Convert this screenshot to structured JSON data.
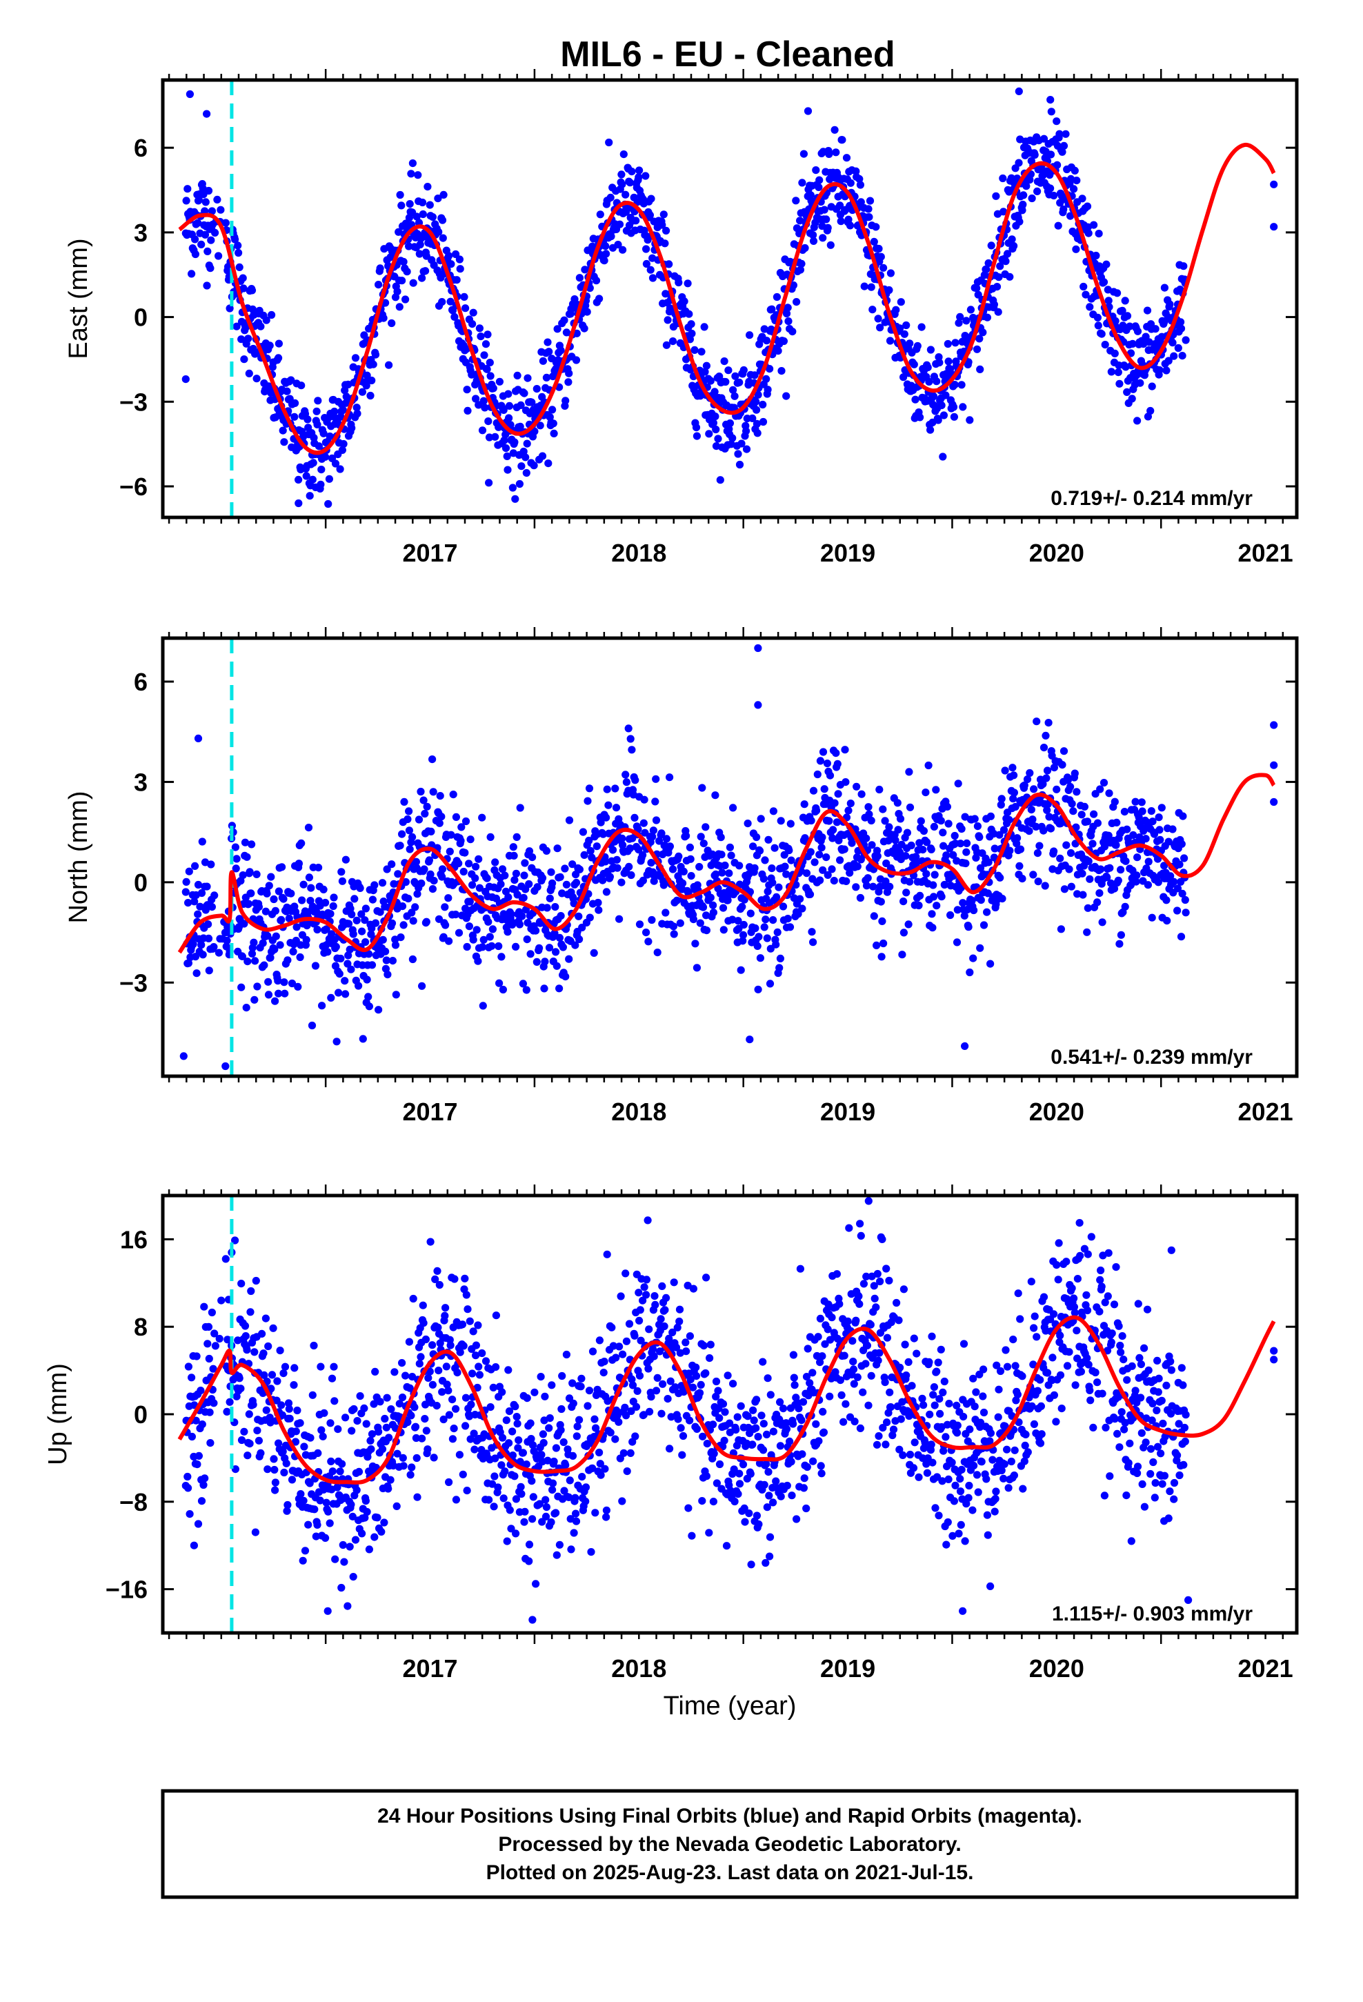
{
  "colors": {
    "final_orbit_points": "#0000ff",
    "model_curve": "#ff0000",
    "event_line": "#00e5e5",
    "frame": "#000000"
  },
  "chart_data": [
    {
      "type": "scatter",
      "title": "MIL6  - EU - Cleaned",
      "xlabel": "",
      "ylabel": "East (mm)",
      "xlim": [
        2016.22,
        2021.65
      ],
      "ylim": [
        -7.1,
        8.4
      ],
      "yticks": [
        -6,
        -3,
        0,
        3,
        6
      ],
      "yticklabels": [
        "−6",
        "−3",
        "0",
        "3",
        "6"
      ],
      "xticks": [
        2017,
        2018,
        2019,
        2020,
        2021
      ],
      "xticklabels": [
        "2017",
        "2018",
        "2019",
        "2020",
        "2021"
      ],
      "event_line_x": 2016.55,
      "rate_annotation": "0.719+/- 0.214 mm/yr",
      "rate_mm_per_yr": 0.719,
      "rate_uncertainty_mm_per_yr": 0.214,
      "model": {
        "x": [
          2016.3,
          2016.4,
          2016.5,
          2016.6,
          2016.7,
          2016.8,
          2016.9,
          2017.0,
          2017.1,
          2017.2,
          2017.3,
          2017.4,
          2017.5,
          2017.6,
          2017.7,
          2017.8,
          2017.9,
          2018.0,
          2018.1,
          2018.2,
          2018.3,
          2018.4,
          2018.5,
          2018.6,
          2018.7,
          2018.8,
          2018.9,
          2019.0,
          2019.1,
          2019.2,
          2019.3,
          2019.4,
          2019.5,
          2019.6,
          2019.7,
          2019.8,
          2019.9,
          2020.0,
          2020.1,
          2020.2,
          2020.3,
          2020.4,
          2020.5,
          2020.6,
          2020.7,
          2020.8,
          2020.9,
          2021.0,
          2021.1,
          2021.2,
          2021.3,
          2021.4,
          2021.5,
          2021.54
        ],
        "y": [
          3.1,
          3.6,
          3.2,
          0.5,
          -1.4,
          -3.3,
          -4.6,
          -4.7,
          -3.5,
          -1.2,
          1.4,
          3.0,
          3.0,
          1.2,
          -1.2,
          -3.2,
          -4.1,
          -3.8,
          -2.4,
          -0.1,
          2.4,
          3.9,
          3.8,
          2.2,
          -0.3,
          -2.4,
          -3.3,
          -3.2,
          -1.8,
          0.7,
          3.2,
          4.6,
          4.4,
          2.6,
          0.1,
          -1.9,
          -2.6,
          -2.2,
          -0.8,
          1.9,
          4.4,
          5.4,
          5.1,
          3.4,
          1.0,
          -0.9,
          -1.8,
          -1.2,
          0.6,
          3.1,
          5.3,
          6.1,
          5.6,
          5.1
        ]
      },
      "observations": {
        "period_yr": 1.0,
        "last_obs_x": 2021.54,
        "outlier_points": [
          [
            2016.35,
            7.9
          ],
          [
            2016.43,
            7.2
          ],
          [
            2016.33,
            -2.2
          ],
          [
            2020.32,
            8.0
          ],
          [
            2020.47,
            7.7
          ],
          [
            2019.31,
            7.3
          ],
          [
            2016.87,
            -6.6
          ],
          [
            2021.54,
            3.2
          ],
          [
            2021.54,
            4.7
          ]
        ]
      }
    },
    {
      "type": "scatter",
      "title": "",
      "xlabel": "",
      "ylabel": "North (mm)",
      "xlim": [
        2016.22,
        2021.65
      ],
      "ylim": [
        -5.8,
        7.3
      ],
      "yticks": [
        -3,
        0,
        3,
        6
      ],
      "yticklabels": [
        "−3",
        "0",
        "3",
        "6"
      ],
      "xticks": [
        2017,
        2018,
        2019,
        2020,
        2021
      ],
      "xticklabels": [
        "2017",
        "2018",
        "2019",
        "2020",
        "2021"
      ],
      "event_line_x": 2016.55,
      "rate_annotation": "0.541+/- 0.239 mm/yr",
      "rate_mm_per_yr": 0.541,
      "rate_uncertainty_mm_per_yr": 0.239,
      "model": {
        "x": [
          2016.3,
          2016.4,
          2016.5,
          2016.54,
          2016.55,
          2016.6,
          2016.7,
          2016.8,
          2016.9,
          2017.0,
          2017.1,
          2017.2,
          2017.3,
          2017.4,
          2017.5,
          2017.6,
          2017.7,
          2017.8,
          2017.9,
          2018.0,
          2018.1,
          2018.2,
          2018.3,
          2018.4,
          2018.5,
          2018.6,
          2018.7,
          2018.8,
          2018.9,
          2019.0,
          2019.1,
          2019.2,
          2019.3,
          2019.4,
          2019.5,
          2019.6,
          2019.7,
          2019.8,
          2019.9,
          2020.0,
          2020.1,
          2020.2,
          2020.3,
          2020.4,
          2020.5,
          2020.6,
          2020.7,
          2020.8,
          2020.9,
          2021.0,
          2021.1,
          2021.2,
          2021.3,
          2021.4,
          2021.5,
          2021.54
        ],
        "y": [
          -2.1,
          -1.2,
          -1.0,
          -1.1,
          0.3,
          -0.9,
          -1.4,
          -1.3,
          -1.1,
          -1.2,
          -1.7,
          -2.0,
          -1.0,
          0.6,
          1.0,
          0.4,
          -0.4,
          -0.8,
          -0.6,
          -0.8,
          -1.4,
          -0.8,
          0.6,
          1.5,
          1.4,
          0.5,
          -0.4,
          -0.3,
          0.0,
          -0.3,
          -0.8,
          -0.4,
          1.0,
          2.1,
          1.7,
          0.7,
          0.3,
          0.3,
          0.6,
          0.4,
          -0.3,
          0.4,
          1.8,
          2.6,
          2.3,
          1.3,
          0.7,
          0.9,
          1.1,
          0.8,
          0.2,
          0.5,
          1.9,
          3.0,
          3.2,
          2.9
        ]
      },
      "observations": {
        "period_yr": 1.0,
        "last_obs_x": 2021.54,
        "outlier_points": [
          [
            2019.07,
            7.0
          ],
          [
            2019.07,
            5.3
          ],
          [
            2018.45,
            4.6
          ],
          [
            2016.39,
            4.3
          ],
          [
            2016.52,
            -5.5
          ],
          [
            2016.32,
            -5.2
          ],
          [
            2019.03,
            -4.7
          ],
          [
            2020.06,
            -4.9
          ],
          [
            2021.54,
            2.4
          ],
          [
            2021.54,
            3.5
          ],
          [
            2021.54,
            4.7
          ]
        ]
      }
    },
    {
      "type": "scatter",
      "title": "",
      "xlabel": "Time (year)",
      "ylabel": "Up (mm)",
      "xlim": [
        2016.22,
        2021.65
      ],
      "ylim": [
        -20,
        20
      ],
      "yticks": [
        -16,
        -8,
        0,
        8,
        16
      ],
      "yticklabels": [
        "−16",
        "−8",
        "0",
        "8",
        "16"
      ],
      "xticks": [
        2017,
        2018,
        2019,
        2020,
        2021
      ],
      "xticklabels": [
        "2017",
        "2018",
        "2019",
        "2020",
        "2021"
      ],
      "event_line_x": 2016.55,
      "rate_annotation": "1.115+/- 0.903 mm/yr",
      "rate_mm_per_yr": 1.115,
      "rate_uncertainty_mm_per_yr": 0.903,
      "model": {
        "x": [
          2016.3,
          2016.4,
          2016.5,
          2016.54,
          2016.55,
          2016.6,
          2016.7,
          2016.8,
          2016.9,
          2017.0,
          2017.1,
          2017.2,
          2017.3,
          2017.4,
          2017.5,
          2017.6,
          2017.7,
          2017.8,
          2017.9,
          2018.0,
          2018.1,
          2018.2,
          2018.3,
          2018.4,
          2018.5,
          2018.6,
          2018.7,
          2018.8,
          2018.9,
          2019.0,
          2019.1,
          2019.2,
          2019.3,
          2019.4,
          2019.5,
          2019.6,
          2019.7,
          2019.8,
          2019.9,
          2020.0,
          2020.1,
          2020.2,
          2020.3,
          2020.4,
          2020.5,
          2020.6,
          2020.7,
          2020.8,
          2020.9,
          2021.0,
          2021.1,
          2021.2,
          2021.3,
          2021.4,
          2021.5,
          2021.54
        ],
        "y": [
          -2.3,
          1.0,
          4.5,
          5.8,
          3.8,
          4.5,
          2.8,
          -1.5,
          -4.6,
          -6.0,
          -6.2,
          -6.0,
          -4.0,
          1.0,
          4.7,
          5.6,
          2.5,
          -2.0,
          -4.5,
          -5.2,
          -5.2,
          -4.8,
          -2.5,
          2.0,
          5.5,
          6.5,
          3.8,
          -0.8,
          -3.5,
          -4.0,
          -4.1,
          -3.8,
          -1.0,
          3.5,
          7.0,
          7.7,
          5.0,
          1.0,
          -2.0,
          -3.0,
          -3.0,
          -2.8,
          -0.5,
          4.0,
          7.8,
          8.8,
          6.5,
          2.5,
          -0.5,
          -1.5,
          -1.9,
          -1.8,
          -0.5,
          3.0,
          7.0,
          8.5
        ]
      },
      "observations": {
        "period_yr": 1.0,
        "last_obs_x": 2021.54,
        "outlier_points": [
          [
            2019.6,
            19.5
          ],
          [
            2016.55,
            14.8
          ],
          [
            2020.61,
            17.5
          ],
          [
            2021.05,
            15.0
          ],
          [
            2017.01,
            -18.0
          ],
          [
            2017.99,
            -18.8
          ],
          [
            2016.37,
            -12.0
          ],
          [
            2021.13,
            -17.0
          ],
          [
            2020.05,
            -18.0
          ],
          [
            2021.54,
            5.0
          ],
          [
            2021.54,
            5.8
          ]
        ]
      }
    }
  ],
  "footer": {
    "line1": "24 Hour Positions Using Final Orbits (blue) and Rapid Orbits (magenta).",
    "line2": "Processed by the Nevada Geodetic Laboratory.",
    "line3": "Plotted on 2025-Aug-23. Last data on 2021-Jul-15."
  }
}
